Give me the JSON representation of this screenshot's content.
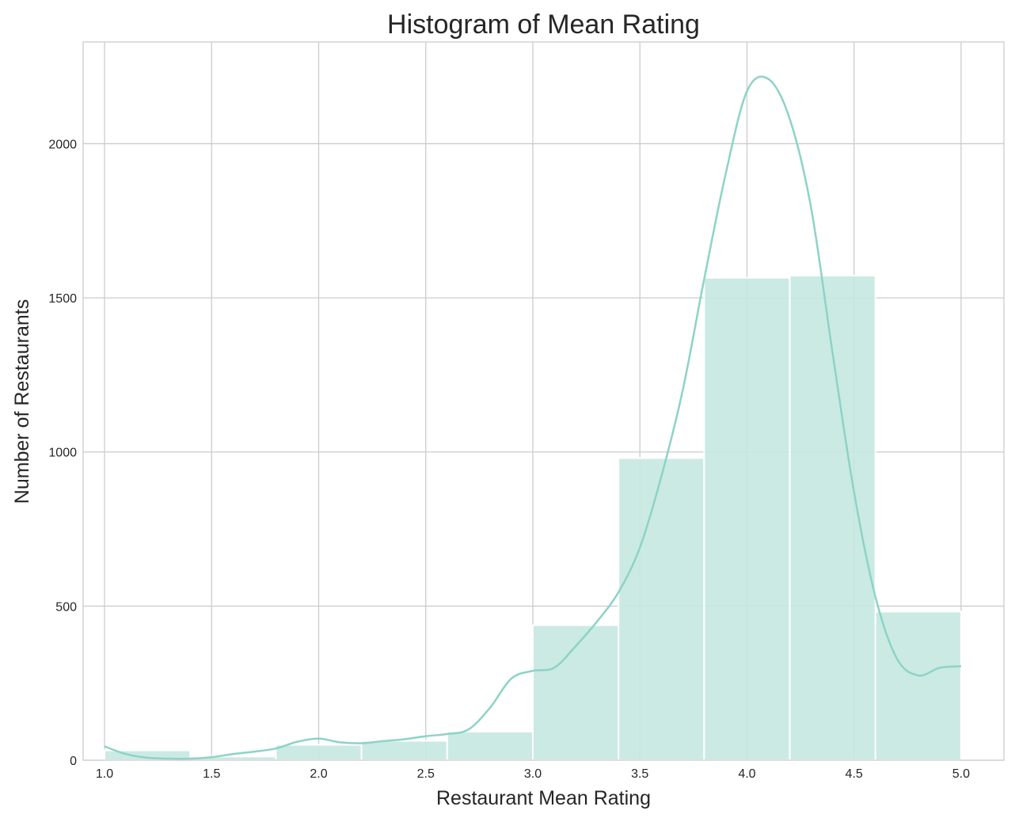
{
  "chart_data": {
    "type": "bar",
    "title": "Histogram of Mean Rating",
    "xlabel": "Restaurant Mean Rating",
    "ylabel": "Number of Restaurants",
    "xlim": [
      0.9,
      5.2
    ],
    "ylim": [
      0,
      2330
    ],
    "xticks": [
      1.0,
      1.5,
      2.0,
      2.5,
      3.0,
      3.5,
      4.0,
      4.5,
      5.0
    ],
    "xtick_labels": [
      "1.0",
      "1.5",
      "2.0",
      "2.5",
      "3.0",
      "3.5",
      "4.0",
      "4.5",
      "5.0"
    ],
    "yticks": [
      0,
      500,
      1000,
      1500,
      2000
    ],
    "ytick_labels": [
      "0",
      "500",
      "1000",
      "1500",
      "2000"
    ],
    "grid": true,
    "bin_edges": [
      1.0,
      1.4,
      1.8,
      2.2,
      2.6,
      3.0,
      3.4,
      3.8,
      4.2,
      4.6,
      5.0
    ],
    "values": [
      32,
      12,
      50,
      63,
      93,
      438,
      980,
      1565,
      1572,
      482
    ],
    "kde": {
      "x": [
        1.0,
        1.1,
        1.2,
        1.3,
        1.4,
        1.5,
        1.6,
        1.7,
        1.8,
        1.9,
        2.0,
        2.1,
        2.2,
        2.3,
        2.4,
        2.5,
        2.6,
        2.7,
        2.8,
        2.9,
        3.0,
        3.1,
        3.2,
        3.3,
        3.4,
        3.5,
        3.6,
        3.7,
        3.8,
        3.9,
        4.0,
        4.1,
        4.2,
        4.3,
        4.4,
        4.5,
        4.6,
        4.7,
        4.8,
        4.9,
        5.0
      ],
      "y": [
        45,
        20,
        8,
        5,
        5,
        10,
        20,
        28,
        38,
        60,
        70,
        58,
        55,
        62,
        68,
        78,
        85,
        100,
        170,
        265,
        290,
        300,
        370,
        450,
        545,
        690,
        920,
        1200,
        1560,
        1900,
        2170,
        2210,
        2080,
        1790,
        1320,
        870,
        530,
        330,
        275,
        300,
        305
      ]
    },
    "colors": {
      "bar": "#c5e8e1",
      "bar_edge": "#ffffff",
      "line": "#8dd3c7",
      "grid": "#cccccc",
      "text": "#262626"
    }
  }
}
